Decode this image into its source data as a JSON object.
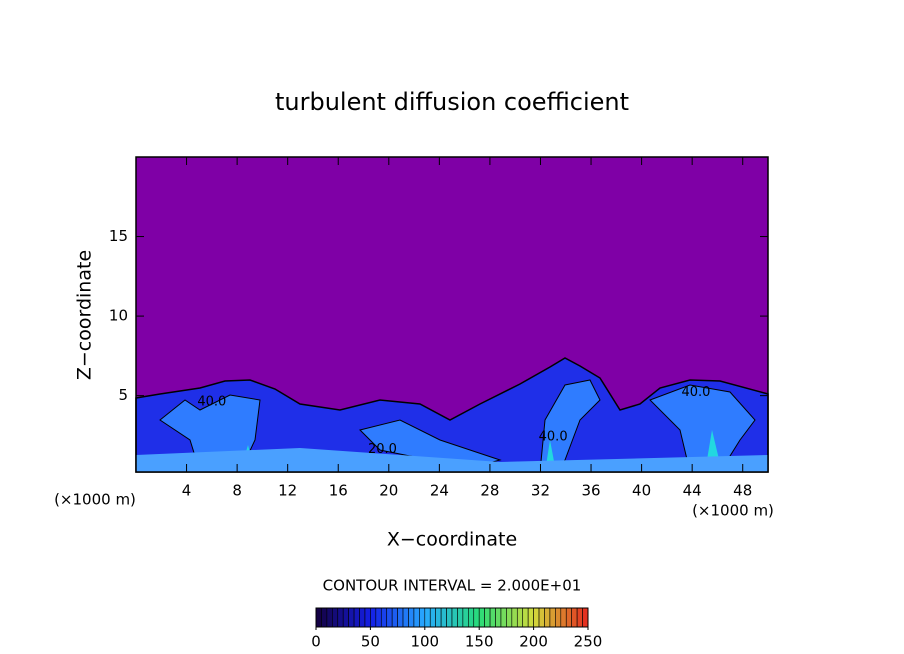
{
  "chart_data": {
    "type": "contour",
    "title": "turbulent diffusion coefficient",
    "xlabel": "X−coordinate",
    "ylabel": "Z−coordinate",
    "x_unit": "(×1000 m)",
    "y_unit": "(×1000 m)",
    "xlim": [
      0,
      50
    ],
    "ylim": [
      0.2,
      20
    ],
    "xticks": [
      4,
      8,
      12,
      16,
      20,
      24,
      28,
      32,
      36,
      40,
      44,
      48
    ],
    "yticks": [
      5,
      10,
      15
    ],
    "contour_interval": "CONTOUR INTERVAL = 2.000E+01",
    "annotations": [
      {
        "text": "40.0",
        "x": 6,
        "y": 4.6
      },
      {
        "text": "40.0",
        "x": 44.3,
        "y": 5.2
      },
      {
        "text": "20.0",
        "x": 19.5,
        "y": 1.6
      },
      {
        "text": "40.0",
        "x": 33,
        "y": 2.4
      }
    ],
    "colorbar": {
      "range": [
        0,
        250
      ],
      "ticks": [
        0,
        50,
        100,
        150,
        200,
        250
      ]
    }
  }
}
